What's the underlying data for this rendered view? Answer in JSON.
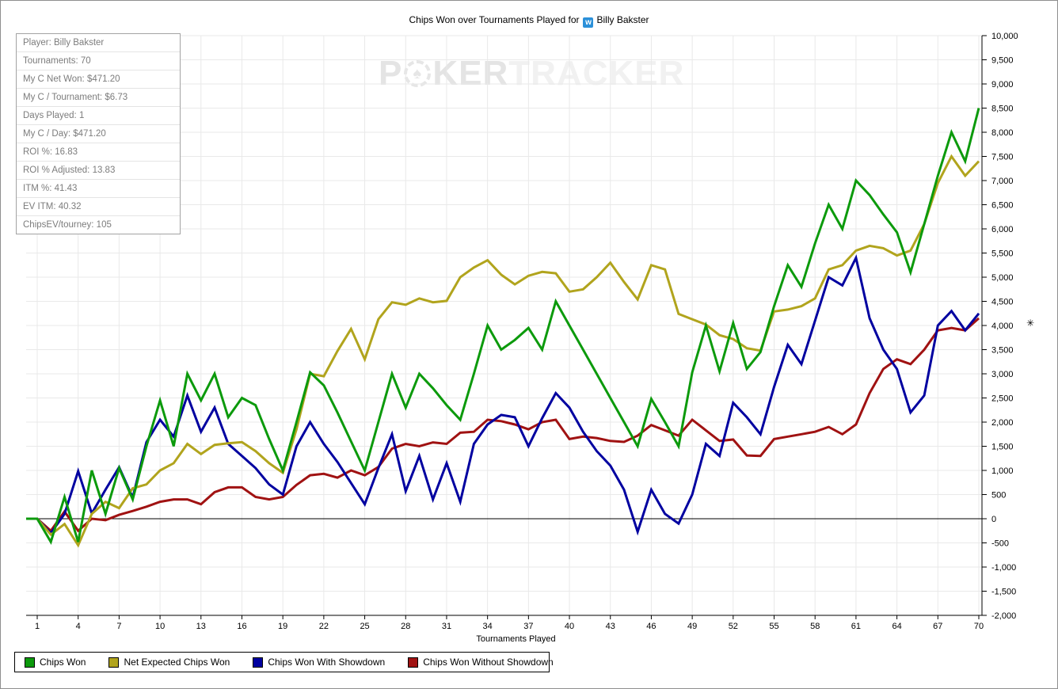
{
  "title": {
    "prefix": "Chips Won over Tournaments Played for",
    "player": "Billy Bakster",
    "site_icon": "winamax-site-icon",
    "site_icon_glyph": "w"
  },
  "watermark": {
    "part1": "P",
    "chip_glyph": "♠",
    "part2": "KER",
    "part3": "TRACKER"
  },
  "stats_panel": {
    "rows": [
      "Player: Billy Bakster",
      "Tournaments: 70",
      "My C Net Won: $471.20",
      "My C / Tournament: $6.73",
      "Days Played: 1",
      "My C / Day: $471.20",
      "ROI %: 16.83",
      "ROI % Adjusted: 13.83",
      "ITM %: 41.43",
      "EV ITM: 40.32",
      "ChipsEV/tourney: 105"
    ]
  },
  "axis_marker": "✳",
  "chart_data": {
    "type": "line",
    "title": "Chips Won over Tournaments Played for Billy Bakster",
    "xlabel": "Tournaments Played",
    "ylabel": "",
    "xlim": [
      1,
      70
    ],
    "ylim": [
      -2000,
      10000
    ],
    "y_tick_step": 500,
    "x_ticks": [
      1,
      4,
      7,
      10,
      13,
      16,
      19,
      22,
      25,
      28,
      31,
      34,
      37,
      40,
      43,
      46,
      49,
      52,
      55,
      58,
      61,
      64,
      67,
      70
    ],
    "grid": true,
    "zero_line": true,
    "legend_position": "bottom-left",
    "x": [
      1,
      2,
      3,
      4,
      5,
      6,
      7,
      8,
      9,
      10,
      11,
      12,
      13,
      14,
      15,
      16,
      17,
      18,
      19,
      20,
      21,
      22,
      23,
      24,
      25,
      26,
      27,
      28,
      29,
      30,
      31,
      32,
      33,
      34,
      35,
      36,
      37,
      38,
      39,
      40,
      41,
      42,
      43,
      44,
      45,
      46,
      47,
      48,
      49,
      50,
      51,
      52,
      53,
      54,
      55,
      56,
      57,
      58,
      59,
      60,
      61,
      62,
      63,
      64,
      65,
      66,
      67,
      68,
      69,
      70
    ],
    "series": [
      {
        "name": "Chips Won",
        "color": "#0C9A0C",
        "values": [
          0,
          -480,
          450,
          -480,
          1000,
          100,
          1050,
          400,
          1500,
          2450,
          1500,
          3000,
          2450,
          3000,
          2100,
          2500,
          2350,
          1650,
          1000,
          2000,
          3030,
          2760,
          2200,
          1600,
          1000,
          2000,
          3000,
          2300,
          3000,
          2700,
          2350,
          2050,
          3000,
          4000,
          3500,
          3700,
          3950,
          3500,
          4500,
          4000,
          3500,
          3000,
          2500,
          2000,
          1500,
          2480,
          2000,
          1500,
          3030,
          4000,
          3050,
          4050,
          3100,
          3450,
          4400,
          5250,
          4800,
          5700,
          6500,
          6000,
          7000,
          6700,
          6300,
          5930,
          5100,
          6100,
          7100,
          8000,
          7400,
          8500
        ]
      },
      {
        "name": "Net Expected Chips Won",
        "color": "#B1A41D",
        "values": [
          0,
          -330,
          -110,
          -550,
          100,
          350,
          220,
          630,
          710,
          1000,
          1150,
          1550,
          1340,
          1530,
          1560,
          1585,
          1400,
          1150,
          950,
          1850,
          3000,
          2950,
          3470,
          3930,
          3300,
          4130,
          4480,
          4430,
          4560,
          4480,
          4510,
          5000,
          5200,
          5350,
          5050,
          4850,
          5030,
          5110,
          5080,
          4700,
          4750,
          5000,
          5300,
          4900,
          4540,
          5250,
          5160,
          4240,
          4130,
          4020,
          3800,
          3720,
          3530,
          3480,
          4290,
          4330,
          4400,
          4560,
          5160,
          5250,
          5550,
          5650,
          5600,
          5450,
          5550,
          6100,
          6950,
          7500,
          7100,
          7400
        ]
      },
      {
        "name": "Chips Won With Showdown",
        "color": "#0000A0",
        "values": [
          0,
          -300,
          100,
          985,
          110,
          600,
          1065,
          440,
          1585,
          2050,
          1700,
          2550,
          1800,
          2300,
          1550,
          1300,
          1050,
          710,
          500,
          1500,
          2000,
          1550,
          1175,
          740,
          300,
          1050,
          1750,
          570,
          1300,
          400,
          1150,
          350,
          1550,
          1950,
          2150,
          2100,
          1500,
          2080,
          2600,
          2300,
          1800,
          1400,
          1100,
          600,
          -270,
          600,
          100,
          -100,
          500,
          1550,
          1300,
          2400,
          2100,
          1750,
          2730,
          3600,
          3200,
          4100,
          5000,
          4830,
          5400,
          4150,
          3500,
          3100,
          2200,
          2550,
          4000,
          4300,
          3900,
          4250
        ]
      },
      {
        "name": "Chips Won Without Showdown",
        "color": "#A01212",
        "values": [
          0,
          -250,
          150,
          -250,
          0,
          -30,
          80,
          160,
          250,
          350,
          400,
          400,
          300,
          550,
          650,
          650,
          450,
          400,
          450,
          700,
          900,
          930,
          850,
          1000,
          900,
          1070,
          1450,
          1550,
          1500,
          1580,
          1550,
          1780,
          1800,
          2050,
          2020,
          1950,
          1850,
          2000,
          2050,
          1650,
          1700,
          1670,
          1610,
          1590,
          1720,
          1940,
          1830,
          1720,
          2050,
          1830,
          1610,
          1640,
          1310,
          1300,
          1650,
          1700,
          1750,
          1800,
          1900,
          1750,
          1950,
          2600,
          3100,
          3300,
          3200,
          3500,
          3900,
          3950,
          3900,
          4150
        ]
      }
    ]
  }
}
